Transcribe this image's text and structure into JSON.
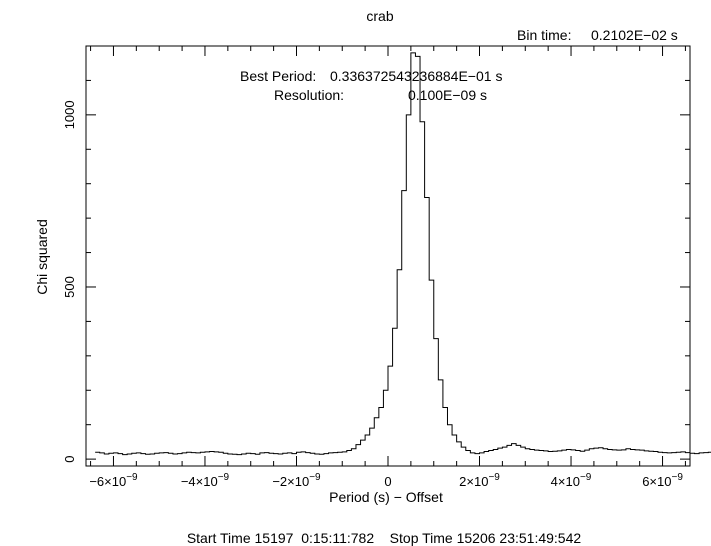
{
  "chart_data": {
    "type": "line",
    "title": "crab",
    "bin_time_label": "Bin time:",
    "bin_time_value": "0.2102E−02 s",
    "best_period_label": "Best Period:",
    "best_period_value": "0.336372543236884E−01   s",
    "resolution_label": "Resolution:",
    "resolution_value": "0.100E−09   s",
    "xlabel": "Period (s) − Offset",
    "ylabel": "Chi squared",
    "footer": "Start Time 15197  0:15:11:782    Stop Time 15206 23:51:49:542",
    "xlim": [
      -6.6e-09,
      6.6e-09
    ],
    "ylim": [
      -20,
      1200
    ],
    "x_ticks": [
      {
        "value": -6e-09,
        "mant": "−6×10",
        "exp": "−9"
      },
      {
        "value": -4e-09,
        "mant": "−4×10",
        "exp": "−9"
      },
      {
        "value": -2e-09,
        "mant": "−2×10",
        "exp": "−9"
      },
      {
        "value": 0,
        "mant": "0",
        "exp": ""
      },
      {
        "value": 2e-09,
        "mant": "2×10",
        "exp": "−9"
      },
      {
        "value": 4e-09,
        "mant": "4×10",
        "exp": "−9"
      },
      {
        "value": 6e-09,
        "mant": "6×10",
        "exp": "−9"
      }
    ],
    "y_ticks": [
      {
        "value": 0,
        "label": "0"
      },
      {
        "value": 500,
        "label": "500"
      },
      {
        "value": 1000,
        "label": "1000"
      }
    ],
    "series": [
      {
        "bin_width": 1e-10,
        "x_start": -6.4e-09,
        "values": [
          20,
          18,
          15,
          17,
          18,
          16,
          13,
          15,
          17,
          18,
          16,
          14,
          15,
          17,
          18,
          19,
          17,
          15,
          16,
          18,
          20,
          19,
          18,
          20,
          21,
          22,
          21,
          20,
          17,
          15,
          14,
          13,
          15,
          17,
          16,
          14,
          18,
          19,
          17,
          16,
          15,
          17,
          18,
          16,
          20,
          21,
          19,
          17,
          15,
          14,
          16,
          18,
          19,
          20,
          21,
          25,
          30,
          42,
          55,
          70,
          90,
          120,
          150,
          200,
          270,
          380,
          550,
          780,
          1000,
          1180,
          1170,
          980,
          760,
          520,
          350,
          230,
          150,
          100,
          70,
          50,
          35,
          25,
          18,
          16,
          18,
          22,
          25,
          28,
          32,
          35,
          40,
          45,
          40,
          35,
          30,
          28,
          26,
          25,
          24,
          22,
          23,
          24,
          26,
          28,
          27,
          25,
          23,
          26,
          30,
          32,
          33,
          30,
          28,
          27,
          26,
          27,
          30,
          28,
          27,
          26,
          24,
          23,
          22,
          20,
          19,
          18,
          19,
          20,
          21,
          19,
          17,
          16,
          18,
          19,
          20,
          18
        ]
      }
    ]
  }
}
